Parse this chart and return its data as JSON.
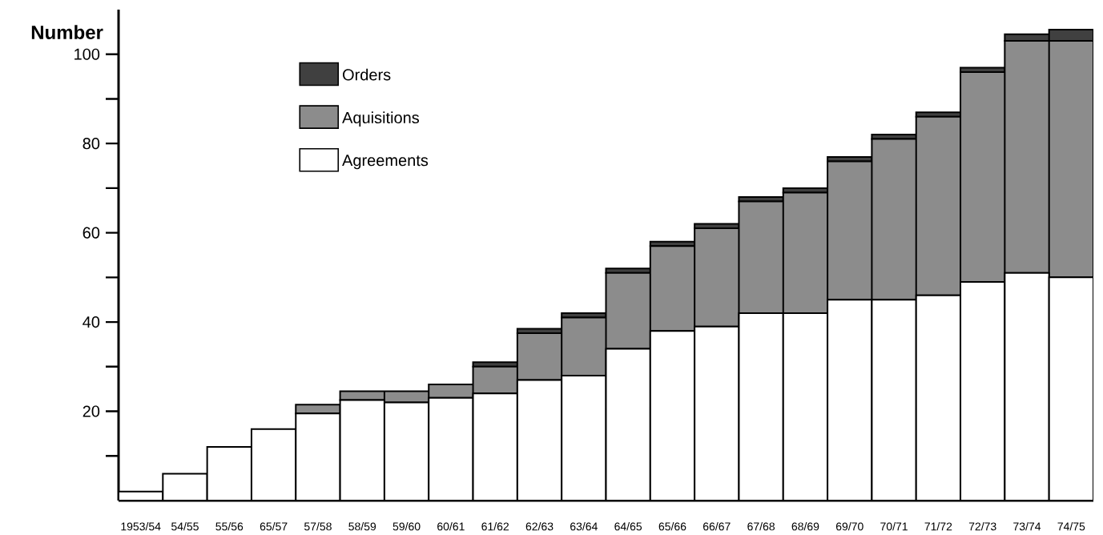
{
  "chart_data": {
    "type": "bar",
    "stacked": true,
    "ylabel": "Number",
    "categories": [
      "1953/54",
      "54/55",
      "55/56",
      "65/57",
      "57/58",
      "58/59",
      "59/60",
      "60/61",
      "61/62",
      "62/63",
      "63/64",
      "64/65",
      "65/66",
      "66/67",
      "67/68",
      "68/69",
      "69/70",
      "70/71",
      "71/72",
      "72/73",
      "73/74",
      "74/75"
    ],
    "series": [
      {
        "name": "Agreements",
        "color": "#ffffff",
        "values": [
          2,
          6,
          12,
          16,
          19.5,
          22.5,
          22,
          23,
          24,
          27,
          28,
          34,
          38,
          39,
          42,
          42,
          45,
          45,
          46,
          49,
          51,
          50
        ]
      },
      {
        "name": "Aquisitions",
        "color": "#8c8c8c",
        "values": [
          0,
          0,
          0,
          0,
          2,
          2,
          2.5,
          3,
          6,
          10.5,
          13,
          17,
          19,
          22,
          25,
          27,
          31,
          36,
          40,
          47,
          52,
          53
        ]
      },
      {
        "name": "Orders",
        "color": "#404040",
        "values": [
          0,
          0,
          0,
          0,
          0,
          0,
          0,
          0,
          1,
          1,
          1,
          1,
          1,
          1,
          1,
          1,
          1,
          1,
          1,
          1,
          1.5,
          2.5
        ]
      }
    ],
    "ylim": [
      0,
      110
    ],
    "yticks": [
      {
        "value": 10,
        "label": null
      },
      20,
      {
        "value": 30,
        "label": null
      },
      40,
      {
        "value": 50,
        "label": null
      },
      60,
      {
        "value": 70,
        "label": null
      },
      80,
      {
        "value": 90,
        "label": null
      },
      100
    ],
    "legend": "top left",
    "grid": false
  }
}
